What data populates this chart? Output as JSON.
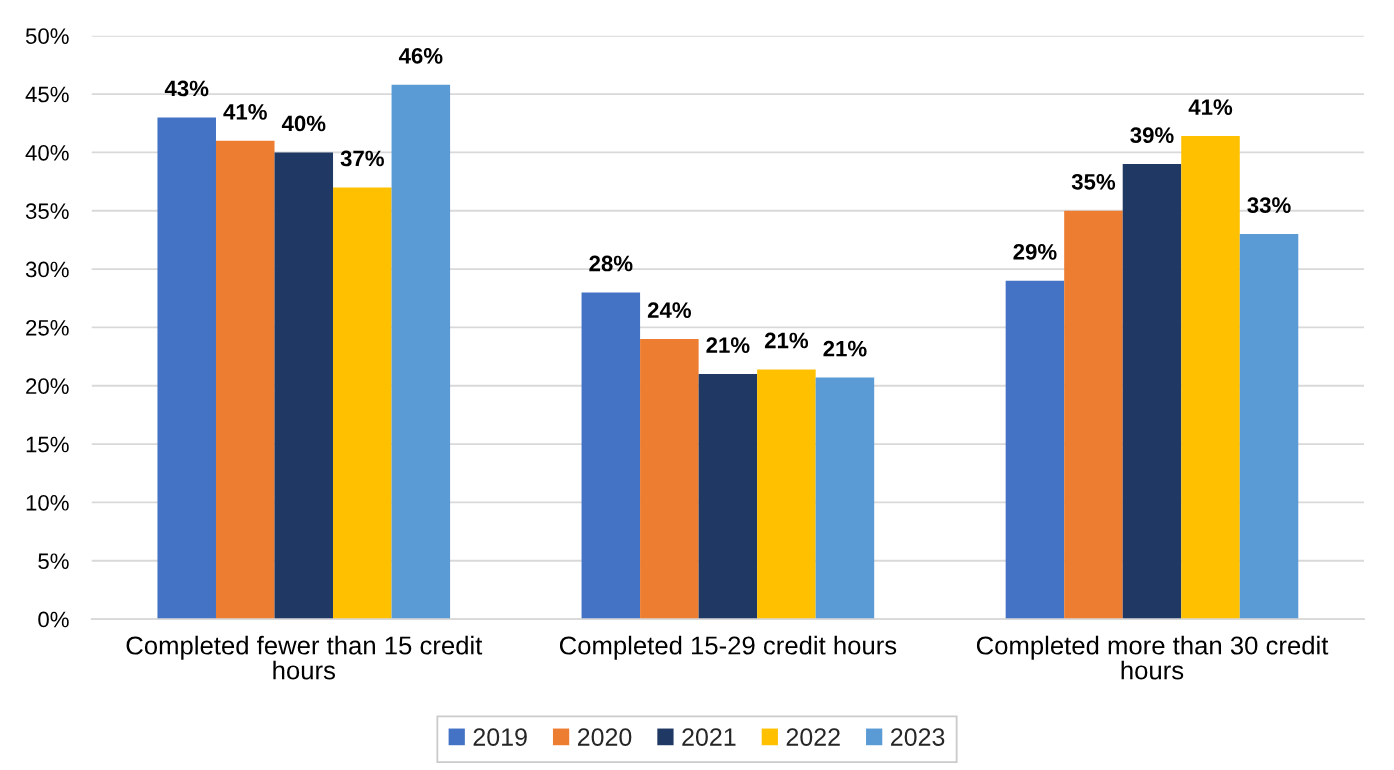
{
  "chart_data": {
    "type": "bar",
    "categories": [
      "Completed fewer than 15 credit hours",
      "Completed 15-29 credit hours",
      "Completed more than 30 credit hours"
    ],
    "series": [
      {
        "name": "2019",
        "color": "#4472c4",
        "values": [
          43,
          28,
          29
        ],
        "value_labels": [
          "43%",
          "28%",
          "29%"
        ]
      },
      {
        "name": "2020",
        "color": "#ed7d31",
        "values": [
          41,
          24,
          35
        ],
        "value_labels": [
          "41%",
          "24%",
          "35%"
        ]
      },
      {
        "name": "2021",
        "color": "#203864",
        "values": [
          40,
          21,
          39
        ],
        "value_labels": [
          "40%",
          "21%",
          "39%"
        ]
      },
      {
        "name": "2022",
        "color": "#ffc000",
        "values": [
          37,
          21.4,
          41.4
        ],
        "value_labels": [
          "37%",
          "21%",
          "41%"
        ]
      },
      {
        "name": "2023",
        "color": "#5b9bd5",
        "values": [
          45.8,
          20.7,
          33
        ],
        "value_labels": [
          "46%",
          "21%",
          "33%"
        ]
      }
    ],
    "ylim": [
      0,
      50
    ],
    "yticks": [
      {
        "value": 0,
        "label": "0%"
      },
      {
        "value": 5,
        "label": "5%"
      },
      {
        "value": 10,
        "label": "10%"
      },
      {
        "value": 15,
        "label": "15%"
      },
      {
        "value": 20,
        "label": "20%"
      },
      {
        "value": 25,
        "label": "25%"
      },
      {
        "value": 30,
        "label": "30%"
      },
      {
        "value": 35,
        "label": "35%"
      },
      {
        "value": 40,
        "label": "40%"
      },
      {
        "value": 45,
        "label": "45%"
      },
      {
        "value": 50,
        "label": "50%"
      }
    ],
    "grid": "y",
    "legend": "bottom"
  }
}
